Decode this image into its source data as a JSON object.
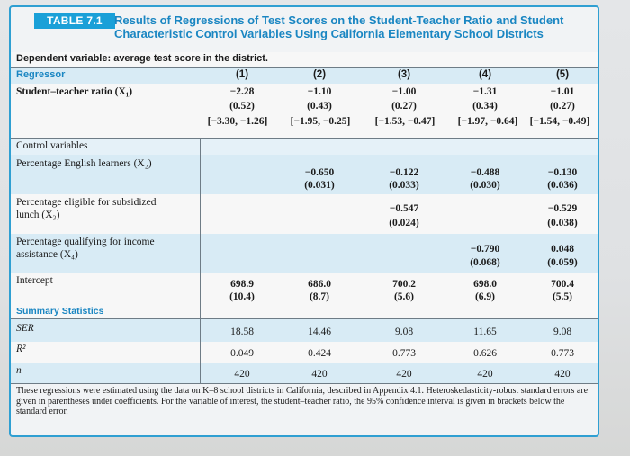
{
  "header": {
    "table_badge": "TABLE 7.1",
    "title_line1": "Results of Regressions of Test Scores on the Student-Teacher Ratio and Student",
    "title_line2": "Characteristic Control Variables Using California Elementary School Districts"
  },
  "dependent_variable": "Dependent variable: average test score in the district.",
  "columns": {
    "regressor": "Regressor",
    "labels": [
      "(1)",
      "(2)",
      "(3)",
      "(4)",
      "(5)"
    ]
  },
  "student_teacher": {
    "label": "Student–teacher ratio (X₁)",
    "coef": [
      "−2.28",
      "−1.10",
      "−1.00",
      "−1.31",
      "−1.01"
    ],
    "se": [
      "(0.52)",
      "(0.43)",
      "(0.27)",
      "(0.34)",
      "(0.27)"
    ],
    "ci": [
      "[−3.30, −1.26]",
      "[−1.95, −0.25]",
      "[−1.53, −0.47]",
      "[−1.97, −0.64]",
      "[−1.54, −0.49]"
    ]
  },
  "control_variables_label": "Control variables",
  "english": {
    "label": "Percentage English learners (X₂)",
    "coef": [
      "",
      "−0.650",
      "−0.122",
      "−0.488",
      "−0.130"
    ],
    "se": [
      "",
      "(0.031)",
      "(0.033)",
      "(0.030)",
      "(0.036)"
    ]
  },
  "lunch": {
    "label_line1": "Percentage eligible for subsidized",
    "label_line2": "lunch (X₃)",
    "coef": [
      "",
      "",
      "−0.547",
      "",
      "−0.529"
    ],
    "se": [
      "",
      "",
      "(0.024)",
      "",
      "(0.038)"
    ]
  },
  "income": {
    "label_line1": "Percentage qualifying for income",
    "label_line2": "assistance (X₄)",
    "coef": [
      "",
      "",
      "",
      "−0.790",
      "0.048"
    ],
    "se": [
      "",
      "",
      "",
      "(0.068)",
      "(0.059)"
    ]
  },
  "intercept": {
    "label": "Intercept",
    "coef": [
      "698.9",
      "686.0",
      "700.2",
      "698.0",
      "700.4"
    ],
    "se": [
      "(10.4)",
      "(8.7)",
      "(5.6)",
      "(6.9)",
      "(5.5)"
    ]
  },
  "summary_label": "Summary Statistics",
  "ser": {
    "label": "SER",
    "values": [
      "18.58",
      "14.46",
      "9.08",
      "11.65",
      "9.08"
    ]
  },
  "r2": {
    "label": "R̄²",
    "values": [
      "0.049",
      "0.424",
      "0.773",
      "0.626",
      "0.773"
    ]
  },
  "n": {
    "label": "n",
    "values": [
      "420",
      "420",
      "420",
      "420",
      "420"
    ]
  },
  "note": "These regressions were estimated using the data on K–8 school districts in California, described in Appendix 4.1. Heteroskedasticity-robust standard errors are given in parentheses under coefficients. For the variable of interest, the student–teacher ratio, the 95% confidence interval is given in brackets below the standard error.",
  "colors": {
    "accent": "#1aa0d8",
    "title": "#1a86c2",
    "row_blue": "#d8ebf5",
    "border": "#2f9fd2"
  }
}
